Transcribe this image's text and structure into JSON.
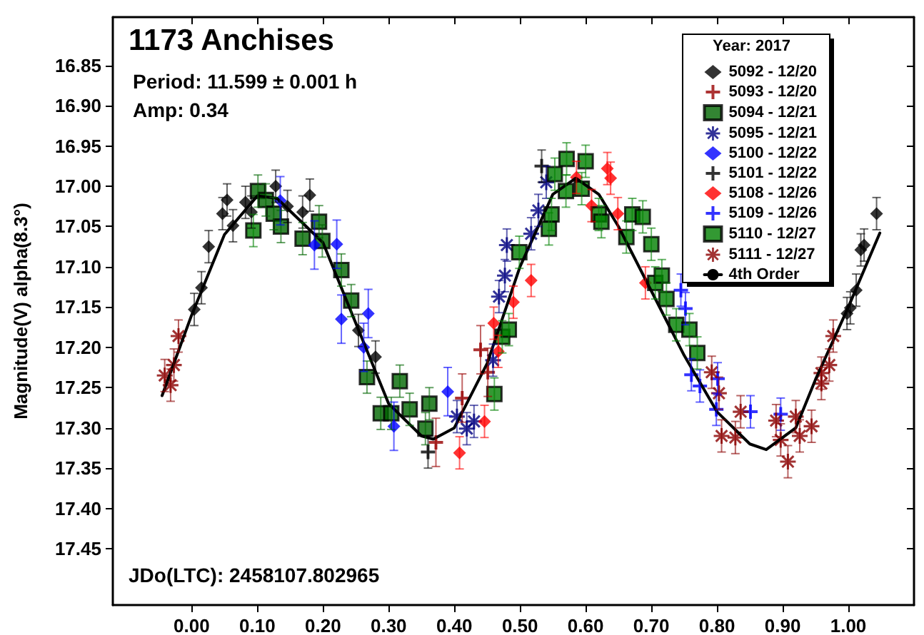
{
  "chart_data": {
    "type": "scatter",
    "title": "1173 Anchises",
    "ylabel": "Magnitude(V) alpha(8.3°)",
    "legend_title": "Year: 2017",
    "legend": "top right",
    "annotations": [
      "Period: 11.599 ± 0.001 h",
      "Amp: 0.34",
      "JDo(LTC): 2458107.802965"
    ],
    "xlim": [
      -0.12,
      1.1
    ],
    "ylim": [
      17.52,
      16.79
    ],
    "xticks": [
      {
        "value": 0,
        "label": "0.00"
      },
      {
        "value": 0.1,
        "label": "0.10"
      },
      {
        "value": 0.2,
        "label": "0.20"
      },
      {
        "value": 0.3,
        "label": "0.30"
      },
      {
        "value": 0.4,
        "label": "0.40"
      },
      {
        "value": 0.5,
        "label": "0.50"
      },
      {
        "value": 0.6,
        "label": "0.60"
      },
      {
        "value": 0.7,
        "label": "0.70"
      },
      {
        "value": 0.8,
        "label": "0.80"
      },
      {
        "value": 0.9,
        "label": "0.90"
      },
      {
        "value": 1,
        "label": "1.00"
      }
    ],
    "yticks": [
      {
        "value": 16.85,
        "label": "16.85"
      },
      {
        "value": 16.9,
        "label": "16.90"
      },
      {
        "value": 16.95,
        "label": "16.95"
      },
      {
        "value": 17,
        "label": "17.00"
      },
      {
        "value": 17.05,
        "label": "17.05"
      },
      {
        "value": 17.1,
        "label": "17.10"
      },
      {
        "value": 17.15,
        "label": "17.15"
      },
      {
        "value": 17.2,
        "label": "17.20"
      },
      {
        "value": 17.25,
        "label": "17.25"
      },
      {
        "value": 17.3,
        "label": "17.30"
      },
      {
        "value": 17.35,
        "label": "17.35"
      },
      {
        "value": 17.4,
        "label": "17.40"
      },
      {
        "value": 17.45,
        "label": "17.45"
      }
    ],
    "series": [
      {
        "name": "5092 - 12/20",
        "color": "#000000",
        "marker": "diamond",
        "x": [
          0.004,
          0.015,
          0.026,
          0.047,
          0.054,
          0.063,
          0.082,
          0.091,
          0.128,
          0.146,
          0.169,
          0.18,
          0.254,
          0.28,
          0.998,
          1.003,
          1.012,
          1.019,
          1.024,
          1.043
        ],
        "values": [
          17.153,
          17.126,
          17.075,
          17.034,
          17.017,
          17.049,
          17.02,
          17.032,
          17.0,
          17.025,
          17.032,
          17.011,
          17.179,
          17.212,
          17.158,
          17.151,
          17.129,
          17.079,
          17.073,
          17.034
        ],
        "errors": [
          0.02,
          0.02,
          0.02,
          0.02,
          0.02,
          0.02,
          0.02,
          0.02,
          0.02,
          0.02,
          0.02,
          0.02,
          0.02,
          0.02,
          0.02,
          0.02,
          0.02,
          0.02,
          0.02,
          0.02
        ]
      },
      {
        "name": "5093 - 12/20",
        "color": "#990000",
        "marker": "cross",
        "x": [
          0.372,
          0.412,
          0.44,
          0.451
        ],
        "values": [
          17.318,
          17.263,
          17.203,
          17.231
        ],
        "errors": [
          0.03,
          0.03,
          0.03,
          0.03
        ]
      },
      {
        "name": "5094 - 12/21",
        "color": "#006600",
        "marker": "square",
        "x": [
          0.101,
          0.113,
          0.125,
          0.136,
          0.169,
          0.194,
          0.199,
          0.228,
          0.243,
          0.267,
          0.288,
          0.304,
          0.317,
          0.332,
          0.356,
          0.362
        ],
        "values": [
          17.006,
          17.017,
          17.034,
          17.05,
          17.065,
          17.044,
          17.068,
          17.104,
          17.142,
          17.237,
          17.282,
          17.282,
          17.242,
          17.277,
          17.301,
          17.27
        ],
        "errors": [
          0.02,
          0.02,
          0.02,
          0.02,
          0.02,
          0.02,
          0.02,
          0.02,
          0.02,
          0.02,
          0.02,
          0.02,
          0.02,
          0.02,
          0.02,
          0.02
        ]
      },
      {
        "name": "5095 - 12/21",
        "color": "#000080",
        "marker": "star",
        "x": [
          0.404,
          0.419,
          0.43,
          0.459,
          0.468,
          0.477,
          0.48,
          0.517,
          0.528,
          0.54
        ],
        "values": [
          17.286,
          17.301,
          17.292,
          17.216,
          17.137,
          17.111,
          17.073,
          17.059,
          17.03,
          16.995
        ],
        "errors": [
          0.02,
          0.02,
          0.02,
          0.02,
          0.02,
          0.02,
          0.02,
          0.02,
          0.02,
          0.02
        ]
      },
      {
        "name": "5100 - 12/22",
        "color": "#0000ff",
        "marker": "diamond",
        "x": [
          0.135,
          0.187,
          0.221,
          0.228,
          0.262,
          0.269,
          0.308,
          0.39
        ],
        "values": [
          17.018,
          17.073,
          17.072,
          17.165,
          17.2,
          17.158,
          17.298,
          17.255
        ],
        "errors": [
          0.03,
          0.03,
          0.03,
          0.03,
          0.03,
          0.03,
          0.03,
          0.03
        ]
      },
      {
        "name": "5101 - 12/22",
        "color": "#000000",
        "marker": "cross",
        "x": [
          0.36,
          0.533
        ],
        "values": [
          17.33,
          16.975
        ],
        "errors": [
          0.02,
          0.02
        ]
      },
      {
        "name": "5108 - 12/26",
        "color": "#ff0000",
        "marker": "diamond",
        "x": [
          0.408,
          0.446,
          0.46,
          0.467,
          0.49,
          0.517,
          0.586,
          0.609,
          0.633,
          0.638,
          0.649,
          0.691
        ],
        "values": [
          17.331,
          17.292,
          17.17,
          17.205,
          17.144,
          17.117,
          16.989,
          17.024,
          16.978,
          16.99,
          17.034,
          17.12
        ],
        "errors": [
          0.02,
          0.02,
          0.02,
          0.02,
          0.02,
          0.02,
          0.02,
          0.02,
          0.02,
          0.02,
          0.02,
          0.02
        ]
      },
      {
        "name": "5109 - 12/26",
        "color": "#0000ff",
        "marker": "cross",
        "x": [
          0.745,
          0.752,
          0.761,
          0.774,
          0.799,
          0.801,
          0.851,
          0.897
        ],
        "values": [
          17.129,
          17.152,
          17.234,
          17.248,
          17.277,
          17.239,
          17.28,
          17.283
        ],
        "errors": [
          0.02,
          0.02,
          0.02,
          0.02,
          0.02,
          0.02,
          0.02,
          0.02
        ]
      },
      {
        "name": "5110 - 12/27",
        "color": "#008000",
        "marker": "square",
        "x": [
          0.094,
          0.461,
          0.473,
          0.483,
          0.499,
          0.544,
          0.548,
          0.553,
          0.57,
          0.571,
          0.594,
          0.6,
          0.62,
          0.624,
          0.662,
          0.671,
          0.687,
          0.706,
          0.7,
          0.716,
          0.723,
          0.738,
          0.758,
          0.77
        ],
        "values": [
          17.055,
          17.258,
          17.187,
          17.178,
          17.082,
          17.053,
          17.035,
          16.985,
          17.006,
          16.966,
          17.003,
          16.969,
          17.035,
          17.044,
          17.063,
          17.035,
          17.038,
          17.12,
          17.072,
          17.111,
          17.14,
          17.172,
          17.178,
          17.207
        ],
        "errors": [
          0.02,
          0.02,
          0.02,
          0.02,
          0.02,
          0.02,
          0.02,
          0.02,
          0.02,
          0.02,
          0.02,
          0.02,
          0.02,
          0.02,
          0.02,
          0.02,
          0.02,
          0.02,
          0.02,
          0.02,
          0.02,
          0.02,
          0.02,
          0.02
        ]
      },
      {
        "name": "5111 - 12/27",
        "color": "#8b0000",
        "marker": "star",
        "x": [
          -0.041,
          -0.032,
          -0.027,
          -0.02,
          0.792,
          0.803,
          0.807,
          0.828,
          0.836,
          0.89,
          0.897,
          0.908,
          0.92,
          0.926,
          0.944,
          0.959,
          0.959,
          0.971,
          0.977
        ],
        "values": [
          17.235,
          17.247,
          17.222,
          17.186,
          17.231,
          17.257,
          17.31,
          17.312,
          17.28,
          17.291,
          17.315,
          17.342,
          17.286,
          17.31,
          17.298,
          17.245,
          17.232,
          17.222,
          17.186
        ],
        "errors": [
          0.02,
          0.02,
          0.02,
          0.02,
          0.02,
          0.02,
          0.02,
          0.02,
          0.02,
          0.02,
          0.02,
          0.02,
          0.02,
          0.02,
          0.02,
          0.02,
          0.02,
          0.02,
          0.02
        ]
      },
      {
        "name": "4th Order",
        "type": "line",
        "color": "#000000",
        "marker": "none",
        "x": [
          -0.045,
          0,
          0.05,
          0.1,
          0.13,
          0.2,
          0.25,
          0.3,
          0.35,
          0.368,
          0.4,
          0.45,
          0.5,
          0.55,
          0.585,
          0.62,
          0.65,
          0.7,
          0.75,
          0.8,
          0.85,
          0.875,
          0.92,
          0.95,
          1.0,
          1.048
        ],
        "values": [
          17.26,
          17.16,
          17.06,
          17.012,
          17.015,
          17.07,
          17.17,
          17.27,
          17.31,
          17.314,
          17.3,
          17.22,
          17.1,
          17.01,
          16.99,
          17.01,
          17.05,
          17.13,
          17.21,
          17.28,
          17.32,
          17.327,
          17.3,
          17.24,
          17.15,
          17.058
        ]
      }
    ]
  }
}
